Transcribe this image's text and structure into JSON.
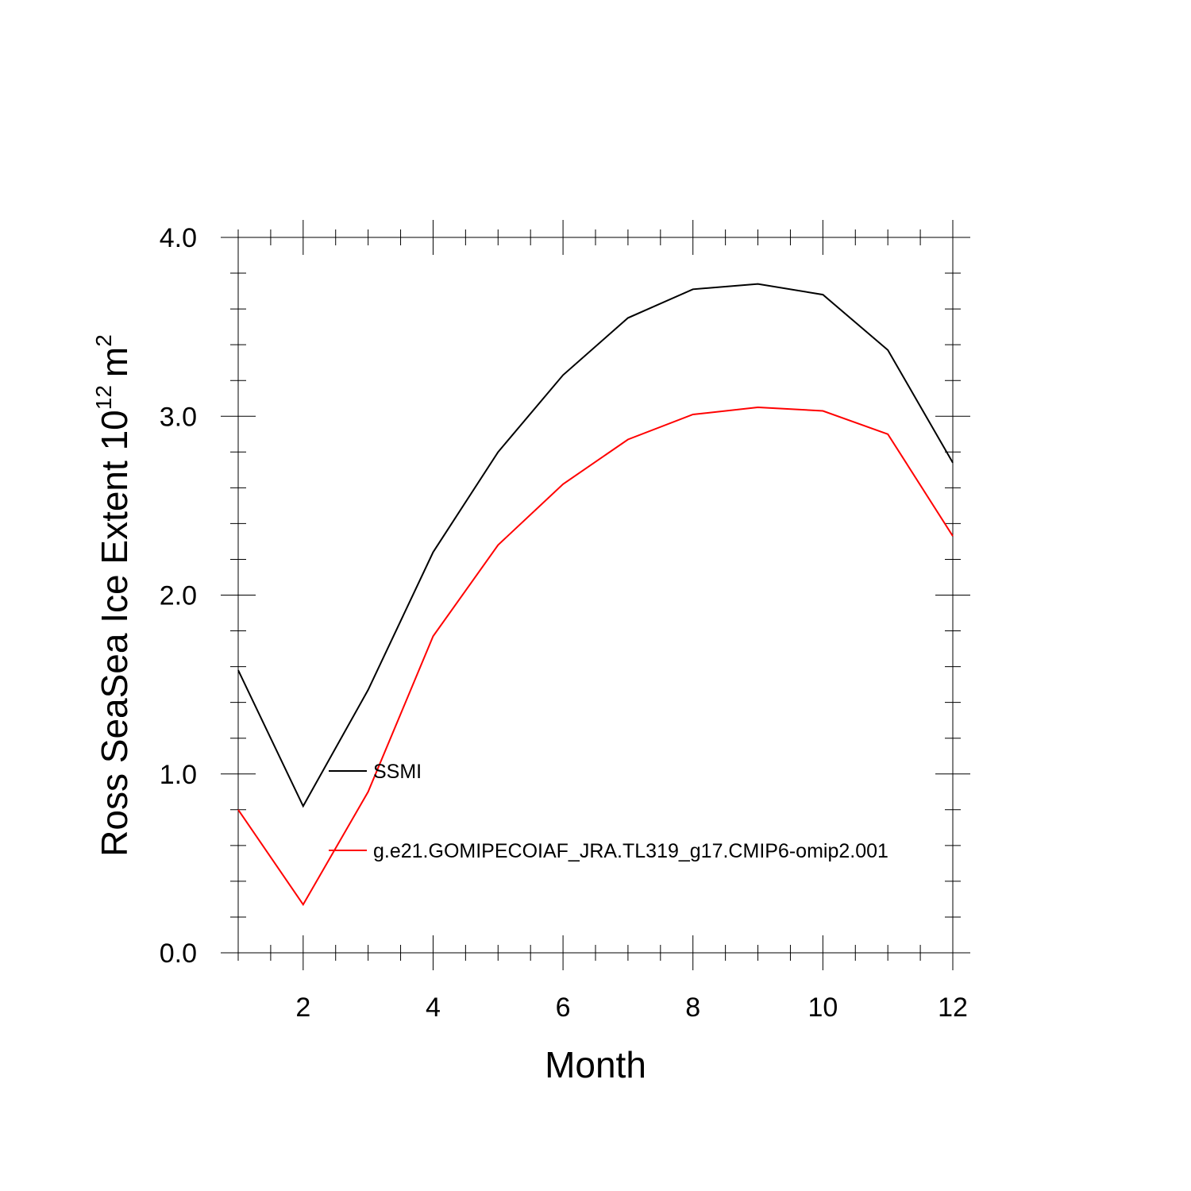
{
  "chart_data": {
    "type": "line",
    "title": "",
    "xlabel": "Month",
    "ylabel": {
      "main": "Ross SeaSea Ice Extent 10",
      "exponent": "12",
      "unit": "m",
      "unit_exponent": "2"
    },
    "x": [
      1,
      2,
      3,
      4,
      5,
      6,
      7,
      8,
      9,
      10,
      11,
      12
    ],
    "xlim": [
      1,
      12
    ],
    "ylim": [
      0,
      4
    ],
    "x_ticks": [
      "2",
      "4",
      "6",
      "8",
      "10",
      "12"
    ],
    "x_tick_values": [
      2,
      4,
      6,
      8,
      10,
      12
    ],
    "y_ticks": [
      "0.0",
      "1.0",
      "2.0",
      "3.0",
      "4.0"
    ],
    "y_tick_values": [
      0,
      1,
      2,
      3,
      4
    ],
    "grid": false,
    "legend_position": "inside-lower-left",
    "series": [
      {
        "name": "SSMI",
        "color": "#000000",
        "values": [
          1.58,
          0.82,
          1.47,
          2.24,
          2.8,
          3.23,
          3.55,
          3.71,
          3.74,
          3.68,
          3.37,
          2.74
        ]
      },
      {
        "name": "g.e21.GOMIPECOIAF_JRA.TL319_g17.CMIP6-omip2.001",
        "color": "#ff0000",
        "values": [
          0.8,
          0.27,
          0.9,
          1.77,
          2.28,
          2.62,
          2.87,
          3.01,
          3.05,
          3.03,
          2.9,
          2.33
        ]
      }
    ]
  }
}
